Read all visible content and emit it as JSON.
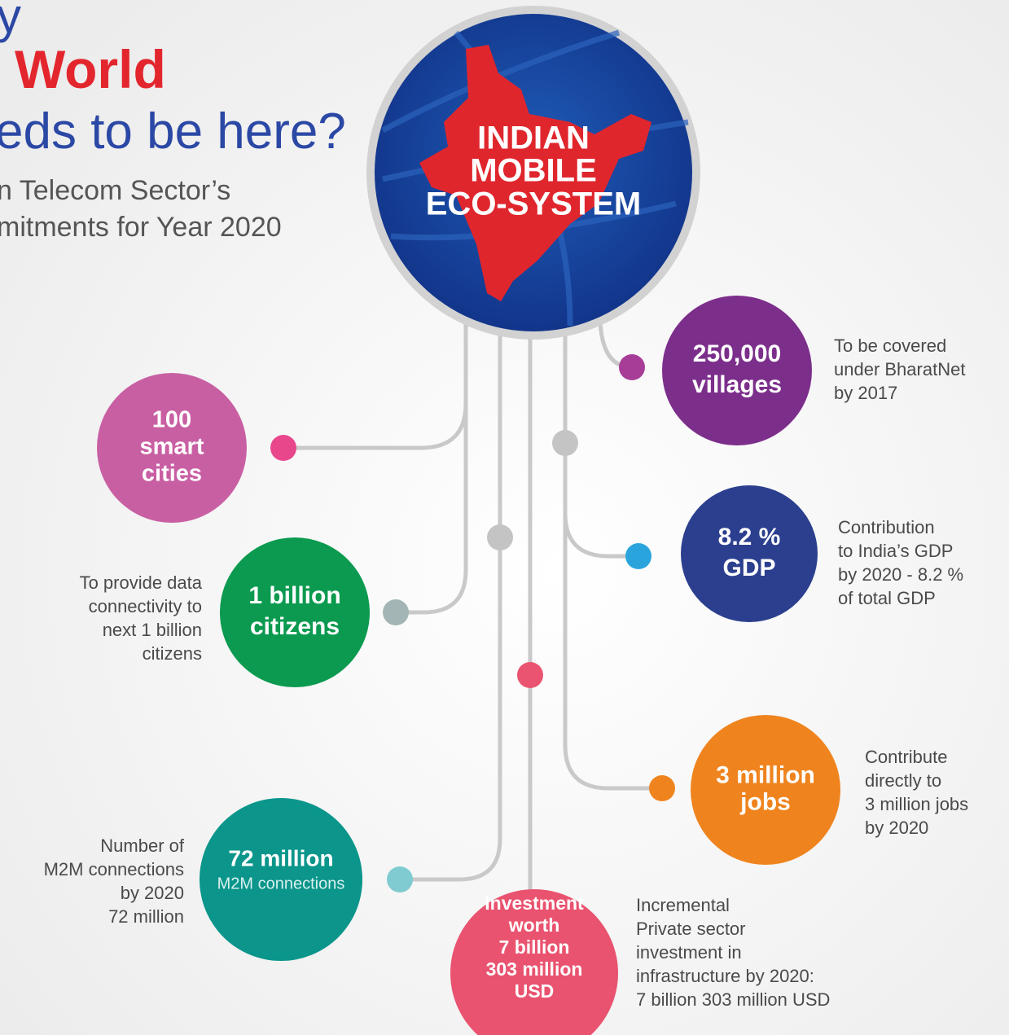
{
  "header": {
    "title_lines": [
      "y",
      "World",
      "eds to be here?"
    ],
    "subtitle_lines": [
      "n Telecom Sector’s",
      "mitments for Year 2020"
    ]
  },
  "center": {
    "lines": [
      "INDIAN",
      "MOBILE",
      "ECO-SYSTEM"
    ]
  },
  "nodes": [
    {
      "lines": [
        "100",
        "smart",
        "cities"
      ],
      "color": "#c95fa3",
      "dot_color": "#e8478c"
    },
    {
      "lines": [
        "1 billion",
        "citizens"
      ],
      "desc": [
        "To provide data",
        "connectivity to",
        "next 1 billion",
        "citizens"
      ],
      "color": "#0b9a4f",
      "dot_color": "#a3b6b5"
    },
    {
      "lines": [
        "72 million"
      ],
      "sub": "M2M connections",
      "desc": [
        "Number of",
        "M2M connections",
        "by 2020",
        "72 million"
      ],
      "color": "#0b958b",
      "dot_color": "#7fcbd1"
    },
    {
      "lines": [
        "Investment",
        "worth",
        "7 billion",
        "303 million",
        "USD"
      ],
      "desc": [
        "Incremental",
        "Private sector",
        "investment in",
        "infrastructure by 2020:",
        "7 billion 303 million USD"
      ],
      "color": "#e9536f",
      "dot_color": "#ea5470"
    },
    {
      "lines": [
        "3 million",
        "jobs"
      ],
      "desc": [
        "Contribute",
        "directly to",
        "3 million jobs",
        "by 2020"
      ],
      "color": "#ef841f",
      "dot_color": "#ef841f"
    },
    {
      "lines": [
        "8.2 %",
        "GDP"
      ],
      "desc": [
        "Contribution",
        "to India’s GDP",
        "by 2020 - 8.2 %",
        "of total GDP"
      ],
      "color": "#2c3f8e",
      "dot_color": "#2aa4dd"
    },
    {
      "lines": [
        "250,000",
        "villages"
      ],
      "desc": [
        "To be covered",
        "under BharatNet",
        "by 2017"
      ],
      "color": "#7c2e8b",
      "dot_color": "#a73d97"
    }
  ]
}
